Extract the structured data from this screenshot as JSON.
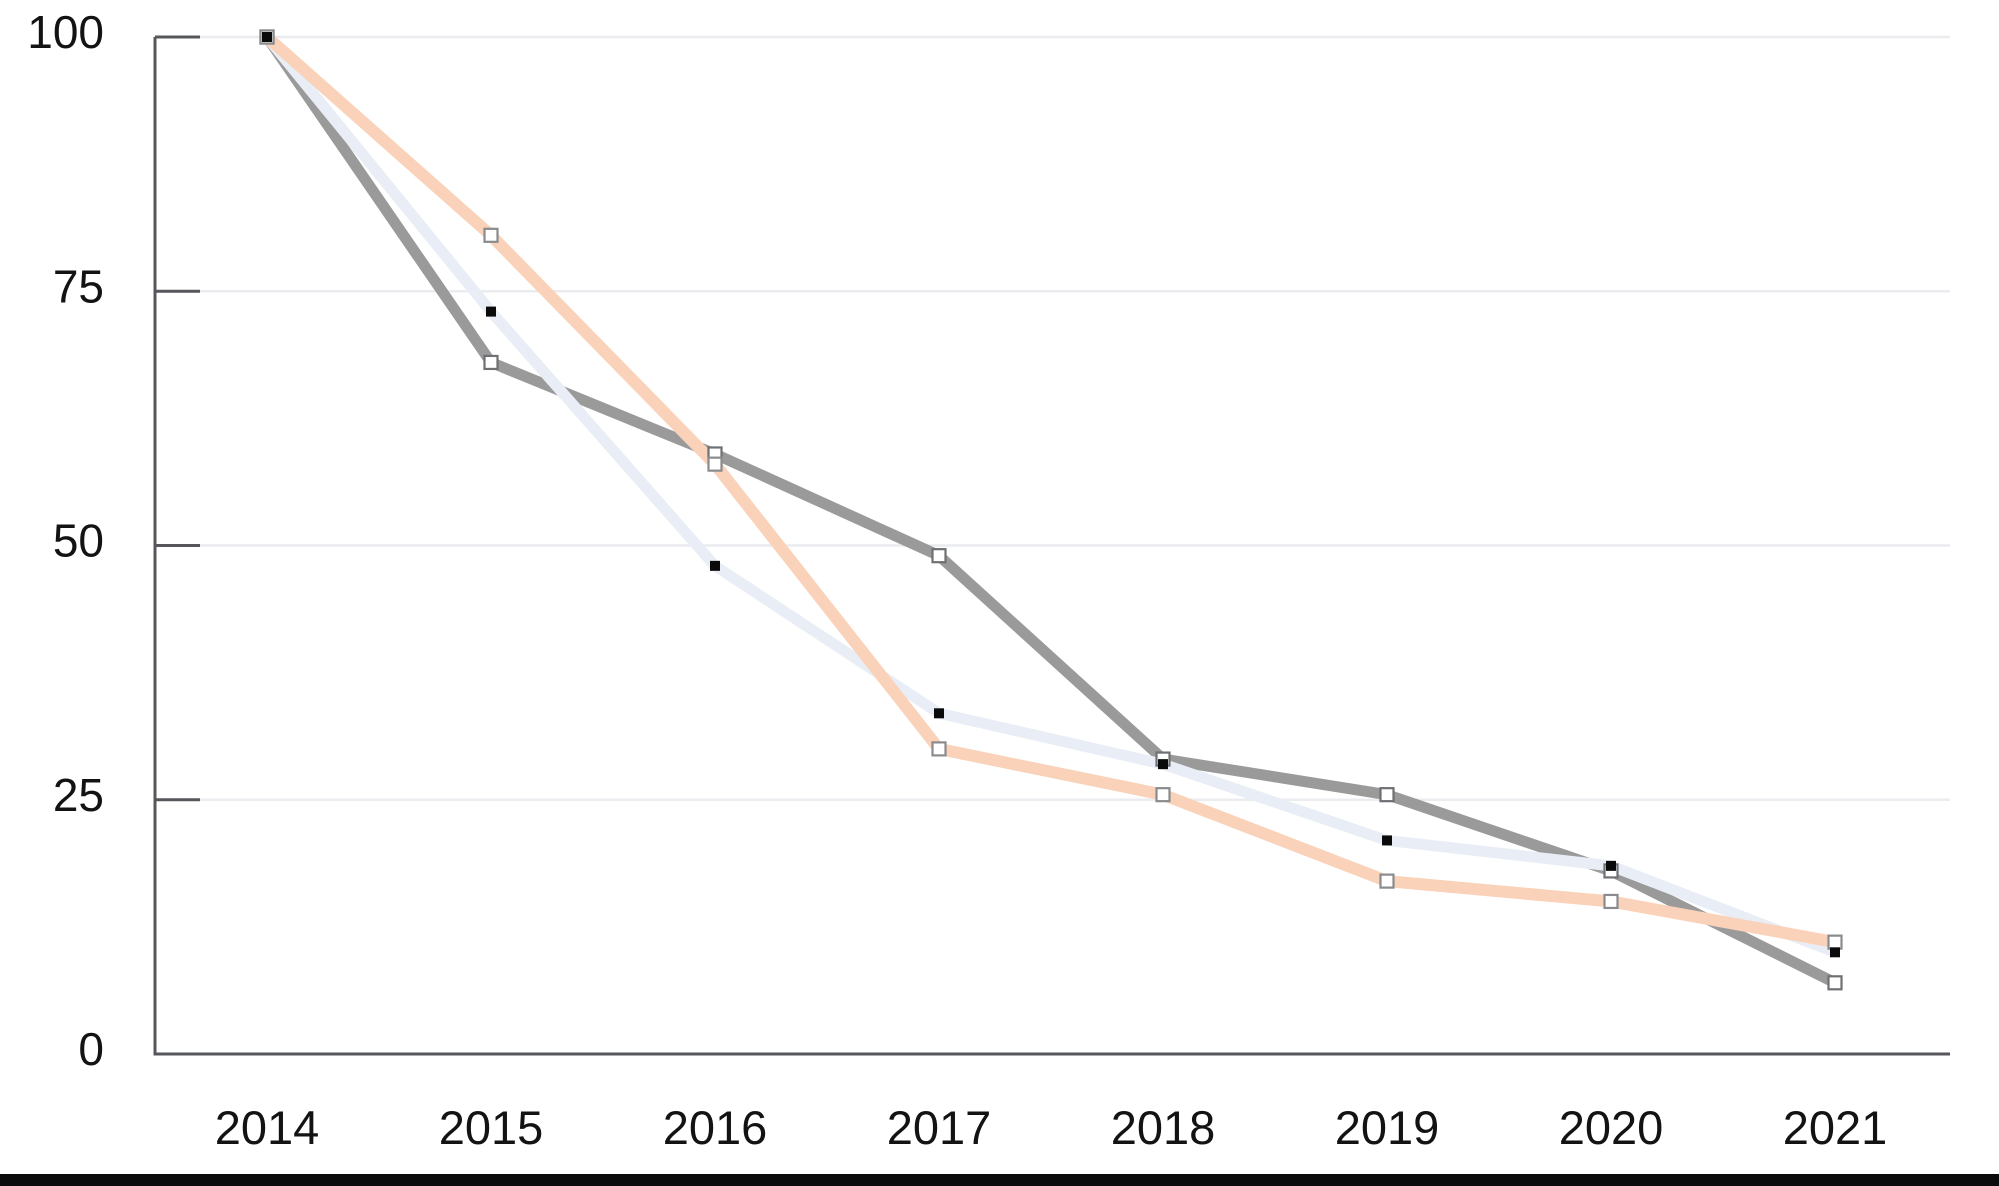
{
  "chart_data": {
    "type": "line",
    "title": "",
    "xlabel": "",
    "ylabel": "",
    "x": [
      "2014",
      "2015",
      "2016",
      "2017",
      "2018",
      "2019",
      "2020",
      "2021"
    ],
    "series": [
      {
        "name": "gray",
        "color": "#9A9A9A",
        "line_width": 11,
        "marker": "open-square",
        "marker_size": 13,
        "marker_color": "#6E7073",
        "values": [
          100,
          68,
          59,
          49,
          29,
          25.5,
          18,
          7
        ]
      },
      {
        "name": "light_blue",
        "color": "#E9EEF6",
        "line_width": 11,
        "marker": "filled-square",
        "marker_size": 10,
        "marker_color": "#0A0A0A",
        "values": [
          100,
          73,
          48,
          33.5,
          28.5,
          21,
          18.5,
          10
        ]
      },
      {
        "name": "peach",
        "color": "#F9D2B9",
        "line_width": 12,
        "marker": "open-square",
        "marker_size": 13,
        "marker_color": "#8A8B8E",
        "values": [
          100,
          80.5,
          58,
          30,
          25.5,
          17,
          15,
          11
        ]
      }
    ],
    "ylim": [
      0,
      100
    ],
    "yticks": [
      0,
      25,
      50,
      75,
      100
    ],
    "ytick_labels": [
      "0",
      "25",
      "50",
      "75",
      "100"
    ],
    "grid": true,
    "legend": false,
    "axis_color": "#55575B",
    "gridline_color": "#EAECEF",
    "label_color": "#131313",
    "bottom_bar_color": "#0B0B0B"
  }
}
